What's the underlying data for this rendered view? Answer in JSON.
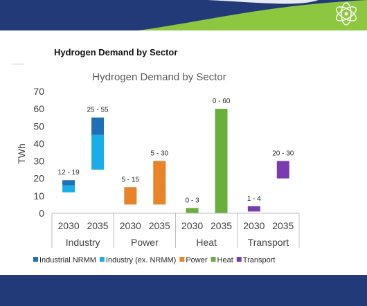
{
  "slide": {
    "title": "Hydrogen Demand by Sector"
  },
  "colors": {
    "top_band_navy": "#223a78",
    "top_band_green": "#8dc63f",
    "bottom_band": "#223a78",
    "industrial_nrmm": "#1f6fb5",
    "industry_ex_nrmm": "#1aaee8",
    "power": "#e8832a",
    "heat": "#6aae3e",
    "transport": "#7b3ab0"
  },
  "logo": {
    "icon": "atom-logo-icon"
  },
  "chart_data": {
    "type": "bar",
    "title": "Hydrogen Demand by Sector",
    "xlabel": "",
    "ylabel": "TWh",
    "ylim": [
      0,
      70
    ],
    "yticks": [
      "0",
      "10",
      "20",
      "30",
      "40",
      "50",
      "60",
      "70"
    ],
    "grid": false,
    "legend_position": "bottom",
    "groups": [
      {
        "label": "Industry",
        "categories": [
          "2030",
          "2035"
        ]
      },
      {
        "label": "Power",
        "categories": [
          "2030",
          "2035"
        ]
      },
      {
        "label": "Heat",
        "categories": [
          "2030",
          "2035"
        ]
      },
      {
        "label": "Transport",
        "categories": [
          "2030",
          "2035"
        ]
      }
    ],
    "series": [
      {
        "name": "Industrial NRMM",
        "color": "#1f6fb5"
      },
      {
        "name": "Industry (ex. NRMM)",
        "color": "#1aaee8"
      },
      {
        "name": "Power",
        "color": "#e8832a"
      },
      {
        "name": "Heat",
        "color": "#6aae3e"
      },
      {
        "name": "Transport",
        "color": "#7b3ab0"
      }
    ],
    "ranges": [
      {
        "group": "Industry",
        "year": "2030",
        "label": "12 - 19",
        "segments": [
          {
            "series": "Industry (ex. NRMM)",
            "low": 12,
            "high": 16
          },
          {
            "series": "Industrial NRMM",
            "low": 16,
            "high": 19
          }
        ]
      },
      {
        "group": "Industry",
        "year": "2035",
        "label": "25 - 55",
        "segments": [
          {
            "series": "Industry (ex. NRMM)",
            "low": 25,
            "high": 45
          },
          {
            "series": "Industrial NRMM",
            "low": 45,
            "high": 55
          }
        ]
      },
      {
        "group": "Power",
        "year": "2030",
        "label": "5 - 15",
        "segments": [
          {
            "series": "Power",
            "low": 5,
            "high": 15
          }
        ]
      },
      {
        "group": "Power",
        "year": "2035",
        "label": "5 - 30",
        "segments": [
          {
            "series": "Power",
            "low": 5,
            "high": 30
          }
        ]
      },
      {
        "group": "Heat",
        "year": "2030",
        "label": "0 - 3",
        "segments": [
          {
            "series": "Heat",
            "low": 0,
            "high": 3
          }
        ]
      },
      {
        "group": "Heat",
        "year": "2035",
        "label": "0 - 60",
        "segments": [
          {
            "series": "Heat",
            "low": 0,
            "high": 60
          }
        ]
      },
      {
        "group": "Transport",
        "year": "2030",
        "label": "1 - 4",
        "segments": [
          {
            "series": "Transport",
            "low": 1,
            "high": 4
          }
        ]
      },
      {
        "group": "Transport",
        "year": "2035",
        "label": "20 - 30",
        "segments": [
          {
            "series": "Transport",
            "low": 20,
            "high": 30
          }
        ]
      }
    ]
  }
}
